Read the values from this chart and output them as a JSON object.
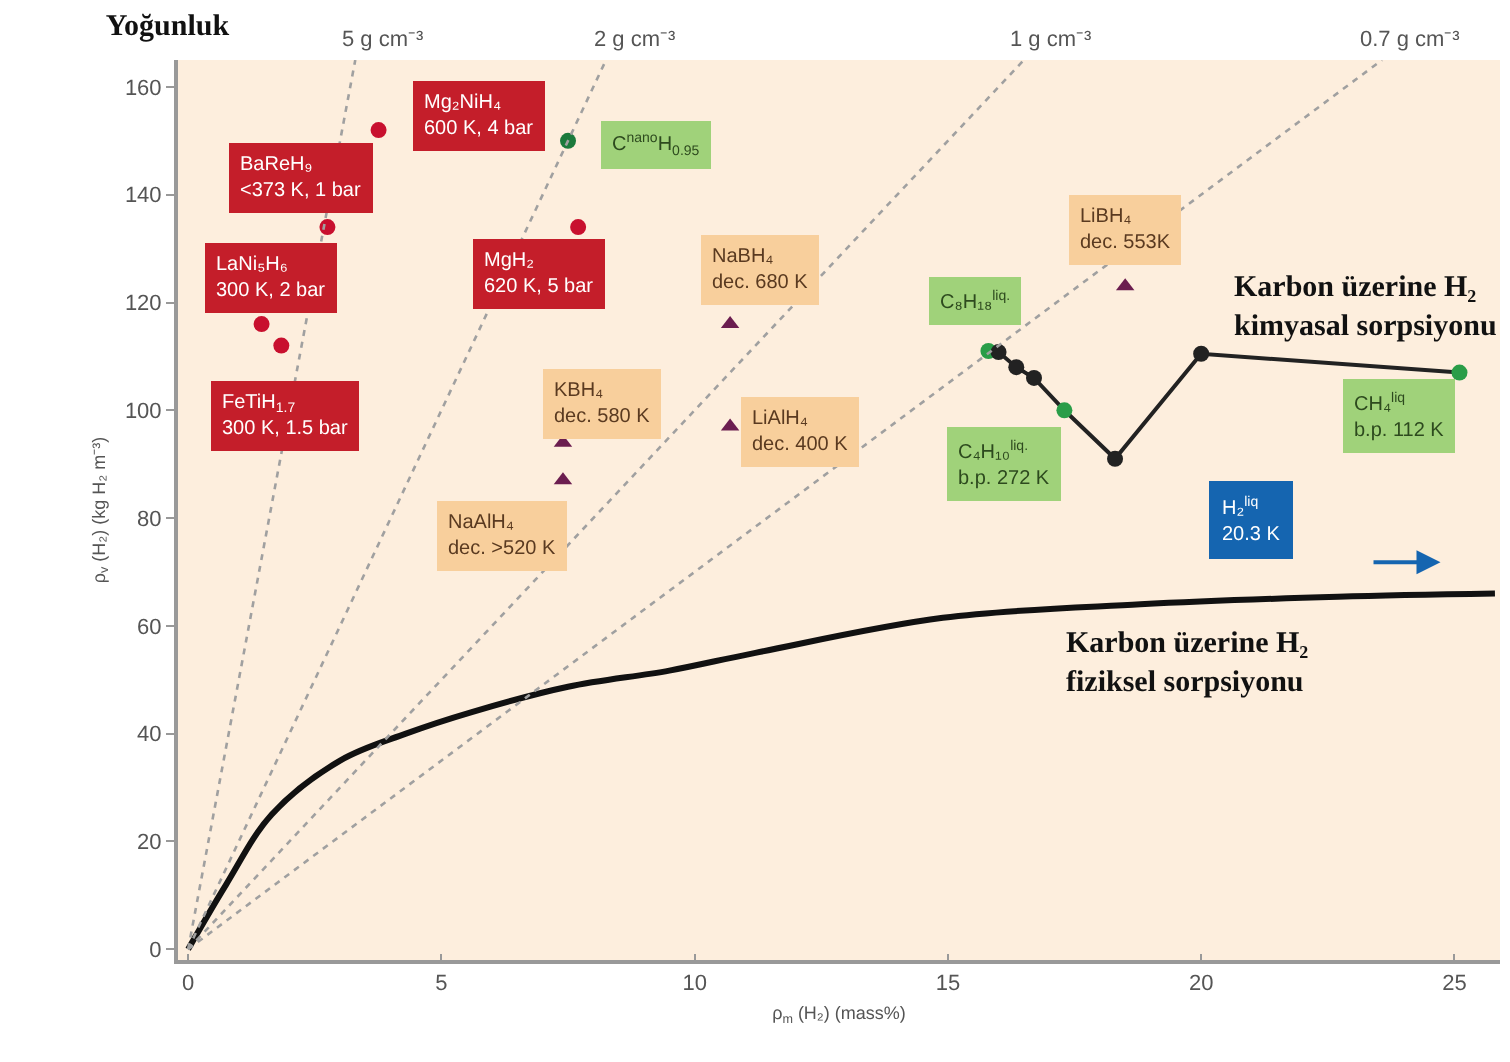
{
  "chart_data": {
    "type": "scatter",
    "title": "Yoğunluk",
    "xlabel": "ρ$_{m}$ (H₂) (mass%)",
    "ylabel": "ρ$_{v}$ (H₂) (kg H₂ m⁻³)",
    "xlim": [
      -0.2,
      25.9
    ],
    "ylim": [
      -2,
      165
    ],
    "xticks": [
      0,
      5,
      10,
      15,
      20,
      25
    ],
    "yticks": [
      0,
      20,
      40,
      60,
      80,
      100,
      120,
      140,
      160
    ],
    "grid": false,
    "legend": false,
    "series": [
      {
        "type": "scatter",
        "marker": "circle",
        "color": "#c8102e",
        "x": [
          3.76,
          2.75,
          1.45,
          1.84,
          7.7
        ],
        "values": [
          152,
          134,
          116,
          112,
          134
        ]
      },
      {
        "type": "scatter",
        "marker": "triangle",
        "color": "#6b1d4f",
        "x": [
          10.7,
          10.7,
          7.4,
          7.4,
          18.5
        ],
        "values": [
          116,
          97,
          94,
          87,
          123
        ]
      },
      {
        "type": "scatter",
        "marker": "circle",
        "color": "#1b7a3c",
        "x": [
          7.5
        ],
        "values": [
          150
        ]
      },
      {
        "type": "line",
        "marker": "circle",
        "color": "#222222",
        "colors": [
          "#2a9d48",
          "#222222",
          "#222222",
          "#222222",
          "#2a9d48",
          "#222222",
          "#222222",
          "#2a9d48"
        ],
        "x": [
          15.8,
          16.0,
          16.35,
          16.7,
          17.3,
          18.3,
          20.0,
          25.1
        ],
        "values": [
          111,
          110.8,
          108,
          106,
          100,
          91,
          110.5,
          107
        ]
      },
      {
        "type": "line",
        "marker": "none",
        "name": "Karbon üzerine H₂\nfiziksel sorpsiyonu",
        "color": "#111111",
        "x": [
          0,
          0.75,
          1.65,
          3.0,
          4.3,
          5.6,
          7.5,
          9.5,
          11.2,
          14.9,
          18.8,
          22.7,
          25.8
        ],
        "values": [
          0,
          12,
          25,
          35,
          40,
          44,
          48.7,
          51.7,
          55,
          61.5,
          64,
          65.4,
          66
        ]
      },
      {
        "type": "line",
        "marker": "none",
        "line_style": "dotted",
        "name": "5 g cm⁻³",
        "color": "#a0a0a0",
        "x": [
          0,
          3.3
        ],
        "values": [
          0,
          165
        ]
      },
      {
        "type": "line",
        "marker": "none",
        "line_style": "dotted",
        "name": "2 g cm⁻³",
        "color": "#a0a0a0",
        "x": [
          0,
          8.25
        ],
        "values": [
          0,
          165
        ]
      },
      {
        "type": "line",
        "marker": "none",
        "line_style": "dotted",
        "name": "1 g cm⁻³",
        "color": "#a0a0a0",
        "x": [
          0,
          16.5
        ],
        "values": [
          0,
          165
        ]
      },
      {
        "type": "line",
        "marker": "none",
        "line_style": "dotted",
        "name": "0.7 g cm⁻³",
        "color": "#a0a0a0",
        "x": [
          0,
          23.57
        ],
        "values": [
          0,
          165
        ]
      }
    ],
    "annotations": [
      {
        "text": "Mg₂NiH₄\n600 K, 4 bar",
        "x": 3.76,
        "y": 152
      },
      {
        "text": "BaReH₉\n<373 K, 1 bar",
        "x": 2.75,
        "y": 134
      },
      {
        "text": "LaNi₅H₆\n300 K, 2 bar",
        "x": 1.45,
        "y": 116
      },
      {
        "text": "FeTiH$_{1.7}$\n300 K, 1.5 bar",
        "x": 1.84,
        "y": 112
      },
      {
        "text": "MgH₂\n620 K, 5 bar",
        "x": 7.7,
        "y": 134
      },
      {
        "text": "C$^{nano}$H$_{0.95}$",
        "x": 7.5,
        "y": 150
      },
      {
        "text": "NaBH₄\ndec. 680 K",
        "x": 10.7,
        "y": 116
      },
      {
        "text": "LiAlH₄\ndec. 400 K",
        "x": 10.7,
        "y": 97
      },
      {
        "text": "KBH₄\ndec. 580 K",
        "x": 7.4,
        "y": 94
      },
      {
        "text": "NaAlH₄\ndec. >520 K",
        "x": 7.4,
        "y": 87
      },
      {
        "text": "LiBH₄\ndec. 553K",
        "x": 18.5,
        "y": 123
      },
      {
        "text": "C₈H₁₈$^{liq.}$",
        "x": 15.8,
        "y": 111
      },
      {
        "text": "C₄H₁₀$^{liq.}$\nb.p. 272 K",
        "x": 17.3,
        "y": 100
      },
      {
        "text": "CH₄$^{liq}$\nb.p. 112 K",
        "x": 25.1,
        "y": 107
      },
      "H₂$^{liq}$\n20.3 K",
      "Karbon üzerine H₂\nkimyasal sorpsiyonu"
    ]
  }
}
